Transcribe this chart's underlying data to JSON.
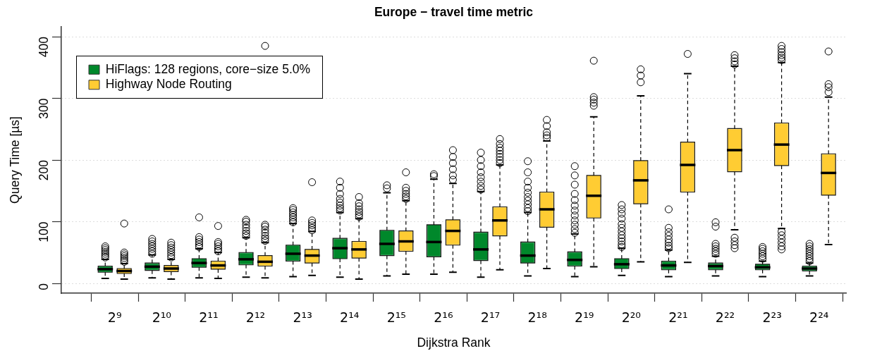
{
  "chart_data": {
    "type": "box",
    "title": "Europe − travel time metric",
    "xlabel": "Dijkstra Rank",
    "ylabel": "Query Time [µs]",
    "categories": [
      "2⁹",
      "2¹⁰",
      "2¹¹",
      "2¹²",
      "2¹³",
      "2¹⁴",
      "2¹⁵",
      "2¹⁶",
      "2¹⁷",
      "2¹⁸",
      "2¹⁹",
      "2²⁰",
      "2²¹",
      "2²²",
      "2²³",
      "2²⁴"
    ],
    "series": [
      {
        "name": "HiFlags: 128 regions, core−size 5.0%",
        "color": "#00882b",
        "boxes": [
          {
            "low": 8,
            "q1": 18,
            "median": 23,
            "q3": 28,
            "high": 39,
            "outliers": [
              42,
              45,
              48,
              51,
              54,
              57,
              60
            ]
          },
          {
            "low": 9,
            "q1": 21,
            "median": 27,
            "q3": 33,
            "high": 46,
            "outliers": [
              48,
              52,
              56,
              60,
              64,
              68,
              72
            ]
          },
          {
            "low": 9,
            "q1": 26,
            "median": 33,
            "q3": 40,
            "high": 56,
            "outliers": [
              59,
              63,
              67,
              71,
              75,
              107
            ]
          },
          {
            "low": 10,
            "q1": 30,
            "median": 39,
            "q3": 50,
            "high": 74,
            "outliers": [
              77,
              81,
              85,
              90,
              95,
              100,
              103
            ]
          },
          {
            "low": 11,
            "q1": 36,
            "median": 48,
            "q3": 62,
            "high": 97,
            "outliers": [
              99,
              103,
              107,
              111,
              115,
              119,
              122
            ]
          },
          {
            "low": 10,
            "q1": 40,
            "median": 57,
            "q3": 73,
            "high": 115,
            "outliers": [
              118,
              122,
              126,
              131,
              137,
              145,
              155,
              165
            ]
          },
          {
            "low": 12,
            "q1": 45,
            "median": 64,
            "q3": 86,
            "high": 147,
            "outliers": [
              154,
              159
            ]
          },
          {
            "low": 15,
            "q1": 43,
            "median": 67,
            "q3": 95,
            "high": 169,
            "outliers": [
              174,
              177
            ]
          },
          {
            "low": 10,
            "q1": 37,
            "median": 55,
            "q3": 83,
            "high": 149,
            "outliers": [
              152,
              158,
              165,
              172,
              180,
              190,
              200,
              212
            ]
          },
          {
            "low": 12,
            "q1": 33,
            "median": 45,
            "q3": 67,
            "high": 115,
            "outliers": [
              117,
              122,
              128,
              134,
              140,
              147,
              155,
              165,
              180,
              198
            ]
          },
          {
            "low": 11,
            "q1": 28,
            "median": 38,
            "q3": 51,
            "high": 80,
            "outliers": [
              82,
              88,
              95,
              102,
              110,
              118,
              126,
              135,
              145,
              160,
              175,
              190
            ]
          },
          {
            "low": 13,
            "q1": 24,
            "median": 31,
            "q3": 40,
            "high": 57,
            "outliers": [
              59,
              63,
              68,
              73,
              78,
              84,
              90,
              96,
              105,
              113,
              120,
              127
            ]
          },
          {
            "low": 11,
            "q1": 22,
            "median": 29,
            "q3": 36,
            "high": 54,
            "outliers": [
              57,
              61,
              66,
              71,
              77,
              83,
              90,
              120
            ]
          },
          {
            "low": 12,
            "q1": 22,
            "median": 28,
            "q3": 33,
            "high": 44,
            "outliers": [
              48,
              52,
              56,
              60,
              64,
              92,
              99
            ]
          },
          {
            "low": 11,
            "q1": 22,
            "median": 26,
            "q3": 31,
            "high": 36,
            "outliers": [
              40,
              44,
              48,
              52,
              56,
              59
            ]
          },
          {
            "low": 12,
            "q1": 20,
            "median": 24,
            "q3": 28,
            "high": 33,
            "outliers": [
              36,
              40,
              44,
              48,
              52,
              56,
              60,
              64
            ]
          }
        ]
      },
      {
        "name": "Highway Node Routing",
        "color": "#ffcc33",
        "boxes": [
          {
            "low": 7,
            "q1": 16,
            "median": 20,
            "q3": 24,
            "high": 32,
            "outliers": [
              35,
              38,
              41,
              44,
              47,
              50,
              97
            ]
          },
          {
            "low": 7,
            "q1": 19,
            "median": 24,
            "q3": 29,
            "high": 39,
            "outliers": [
              42,
              46,
              50,
              54,
              58,
              62,
              66
            ]
          },
          {
            "low": 8,
            "q1": 23,
            "median": 29,
            "q3": 36,
            "high": 50,
            "outliers": [
              52,
              56,
              60,
              64,
              67,
              93
            ]
          },
          {
            "low": 9,
            "q1": 28,
            "median": 35,
            "q3": 45,
            "high": 66,
            "outliers": [
              69,
              73,
              77,
              82,
              87,
              92,
              95,
              385
            ]
          },
          {
            "low": 13,
            "q1": 33,
            "median": 45,
            "q3": 55,
            "high": 84,
            "outliers": [
              86,
              90,
              94,
              98,
              102,
              164
            ]
          },
          {
            "low": 7,
            "q1": 41,
            "median": 55,
            "q3": 68,
            "high": 105,
            "outliers": [
              108,
              112,
              116,
              120,
              125,
              130,
              140
            ]
          },
          {
            "low": 15,
            "q1": 52,
            "median": 68,
            "q3": 85,
            "high": 134,
            "outliers": [
              137,
              141,
              145,
              150,
              155,
              180
            ]
          },
          {
            "low": 18,
            "q1": 62,
            "median": 85,
            "q3": 103,
            "high": 162,
            "outliers": [
              168,
              175,
              185,
              195,
              205,
              216
            ]
          },
          {
            "low": 22,
            "q1": 77,
            "median": 102,
            "q3": 124,
            "high": 192,
            "outliers": [
              195,
              200,
              205,
              210,
              215,
              220,
              226,
              234
            ]
          },
          {
            "low": 24,
            "q1": 91,
            "median": 120,
            "q3": 148,
            "high": 231,
            "outliers": [
              236,
              240,
              245,
              255,
              265
            ]
          },
          {
            "low": 27,
            "q1": 106,
            "median": 142,
            "q3": 175,
            "high": 270,
            "outliers": [
              288,
              293,
              298,
              302,
              361
            ]
          },
          {
            "low": 35,
            "q1": 129,
            "median": 167,
            "q3": 199,
            "high": 304,
            "outliers": [
              326,
              337,
              347
            ]
          },
          {
            "low": 34,
            "q1": 148,
            "median": 192,
            "q3": 229,
            "high": 340,
            "outliers": [
              372
            ]
          },
          {
            "low": 87,
            "q1": 181,
            "median": 216,
            "q3": 251,
            "high": 352,
            "outliers": [
              57,
              62,
              68,
              74,
              355,
              360,
              365,
              370
            ]
          },
          {
            "low": 89,
            "q1": 191,
            "median": 225,
            "q3": 260,
            "high": 358,
            "outliers": [
              55,
              60,
              66,
              72,
              78,
              84,
              362,
              366,
              370,
              375,
              380,
              385
            ]
          },
          {
            "low": 63,
            "q1": 143,
            "median": 179,
            "q3": 210,
            "high": 302,
            "outliers": [
              310,
              318,
              323,
              376
            ]
          }
        ]
      }
    ],
    "ylim": [
      -16,
      416
    ],
    "yticks": [
      0,
      100,
      200,
      300,
      400
    ],
    "grid": "y",
    "legend": "top left",
    "marker": "circle"
  }
}
